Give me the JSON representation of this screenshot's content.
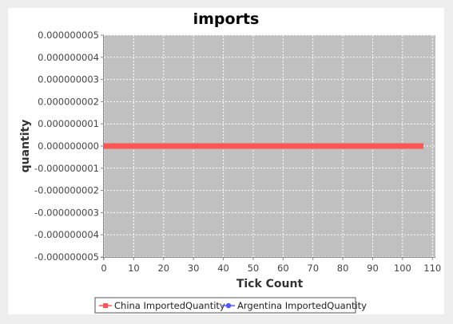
{
  "chart_data": {
    "type": "line",
    "title": "imports",
    "xlabel": "Tick Count",
    "ylabel": "quantity",
    "xlim": [
      0,
      111
    ],
    "ylim": [
      -5e-09,
      5e-09
    ],
    "x_ticks": [
      0,
      10,
      20,
      30,
      40,
      50,
      60,
      70,
      80,
      90,
      100,
      110
    ],
    "y_ticks": [
      5e-09,
      4e-09,
      3e-09,
      2e-09,
      1e-09,
      0,
      -1e-09,
      -2e-09,
      -3e-09,
      -4e-09,
      -5e-09
    ],
    "x_tick_labels": [
      "0",
      "10",
      "20",
      "30",
      "40",
      "50",
      "60",
      "70",
      "80",
      "90",
      "100",
      "110"
    ],
    "y_tick_labels": [
      "0.000000005",
      "0.000000004",
      "0.000000003",
      "0.000000002",
      "0.000000001",
      "0.000000000",
      "-0.000000001",
      "-0.000000002",
      "-0.000000003",
      "-0.000000004",
      "-0.000000005"
    ],
    "grid": true,
    "legend_position": "bottom",
    "plot_background": "#c0c0c0",
    "series": [
      {
        "name": "China ImportedQuantity",
        "color": "#ff5555",
        "marker": "square",
        "x": [
          0,
          107
        ],
        "y": [
          0,
          0
        ]
      },
      {
        "name": "Argentina ImportedQuantity",
        "color": "#5555ff",
        "marker": "circle",
        "x": [
          0,
          107
        ],
        "y": [
          0,
          0
        ]
      }
    ]
  }
}
